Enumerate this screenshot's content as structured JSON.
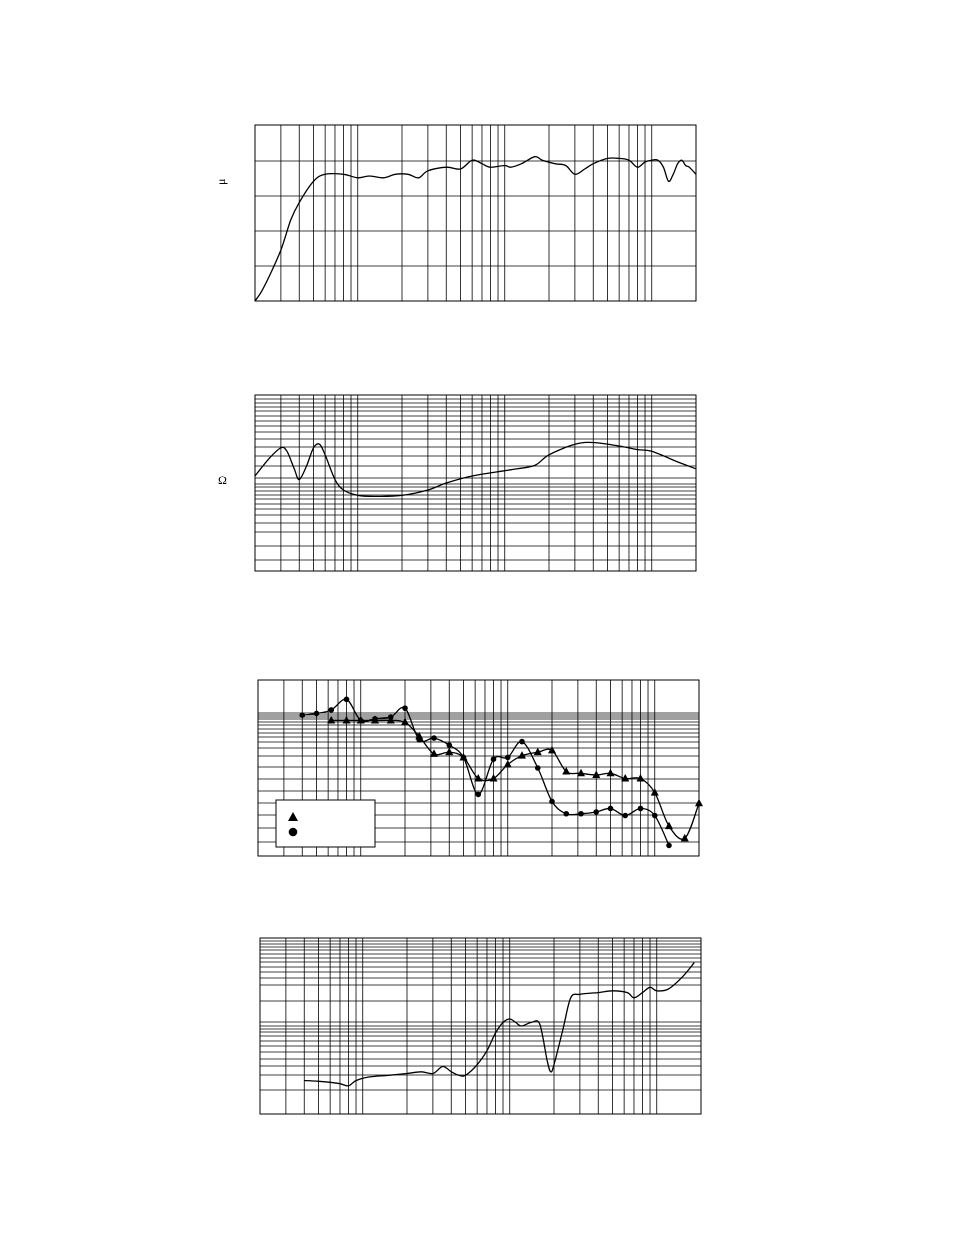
{
  "page": {
    "unit_mu": "μ",
    "unit_ohm": "Ω"
  },
  "chart_data": [
    {
      "type": "line",
      "x_scale": "log",
      "xlim": [
        20,
        20000
      ],
      "x_decade_positions_label": "",
      "ylim": [
        0,
        5
      ],
      "grid": true,
      "legend": "none",
      "series": [
        {
          "points": [
            [
              20,
              0
            ],
            [
              22,
              0.25
            ],
            [
              25,
              0.7
            ],
            [
              30,
              1.45
            ],
            [
              35,
              2.3
            ],
            [
              40,
              2.8
            ],
            [
              50,
              3.4
            ],
            [
              60,
              3.6
            ],
            [
              80,
              3.6
            ],
            [
              100,
              3.5
            ],
            [
              120,
              3.55
            ],
            [
              150,
              3.5
            ],
            [
              180,
              3.6
            ],
            [
              220,
              3.6
            ],
            [
              260,
              3.5
            ],
            [
              300,
              3.7
            ],
            [
              400,
              3.8
            ],
            [
              500,
              3.75
            ],
            [
              600,
              4.0
            ],
            [
              700,
              3.9
            ],
            [
              800,
              3.8
            ],
            [
              1000,
              3.85
            ],
            [
              1100,
              3.8
            ],
            [
              1300,
              3.9
            ],
            [
              1600,
              4.1
            ],
            [
              1800,
              4.0
            ],
            [
              2200,
              3.9
            ],
            [
              2600,
              3.85
            ],
            [
              3000,
              3.6
            ],
            [
              3500,
              3.75
            ],
            [
              4000,
              3.9
            ],
            [
              5000,
              4.05
            ],
            [
              6000,
              4.05
            ],
            [
              7000,
              4.0
            ],
            [
              8000,
              3.8
            ],
            [
              9000,
              3.95
            ],
            [
              10000,
              4.0
            ],
            [
              11000,
              4.0
            ],
            [
              12000,
              3.8
            ],
            [
              13000,
              3.4
            ],
            [
              14000,
              3.6
            ],
            [
              15000,
              3.9
            ],
            [
              16000,
              4.0
            ],
            [
              17000,
              3.85
            ],
            [
              18000,
              3.8
            ],
            [
              20000,
              3.6
            ]
          ]
        }
      ]
    },
    {
      "type": "line",
      "x_scale": "log",
      "xlim": [
        20,
        20000
      ],
      "ylim": [
        0,
        5
      ],
      "grid": true,
      "legend": "none",
      "series": [
        {
          "points": [
            [
              20,
              2.7
            ],
            [
              25,
              3.2
            ],
            [
              30,
              3.5
            ],
            [
              33,
              3.4
            ],
            [
              37,
              2.9
            ],
            [
              40,
              2.6
            ],
            [
              45,
              3.0
            ],
            [
              50,
              3.5
            ],
            [
              55,
              3.6
            ],
            [
              60,
              3.3
            ],
            [
              70,
              2.6
            ],
            [
              80,
              2.3
            ],
            [
              100,
              2.15
            ],
            [
              130,
              2.12
            ],
            [
              200,
              2.15
            ],
            [
              300,
              2.3
            ],
            [
              400,
              2.5
            ],
            [
              600,
              2.7
            ],
            [
              1000,
              2.85
            ],
            [
              1200,
              2.9
            ],
            [
              1600,
              3.0
            ],
            [
              2000,
              3.3
            ],
            [
              3000,
              3.6
            ],
            [
              4000,
              3.65
            ],
            [
              6000,
              3.55
            ],
            [
              8000,
              3.45
            ],
            [
              10000,
              3.4
            ],
            [
              15000,
              3.1
            ],
            [
              20000,
              2.9
            ]
          ]
        }
      ]
    },
    {
      "type": "line",
      "x_scale": "log",
      "xlim": [
        20,
        20000
      ],
      "ylim": [
        0,
        5
      ],
      "grid": true,
      "legend": "bottom-left",
      "series": [
        {
          "marker": "triangle",
          "points": [
            [
              63,
              3.85
            ],
            [
              80,
              3.85
            ],
            [
              100,
              3.85
            ],
            [
              125,
              3.85
            ],
            [
              160,
              3.85
            ],
            [
              200,
              3.8
            ],
            [
              250,
              3.4
            ],
            [
              315,
              2.9
            ],
            [
              400,
              2.95
            ],
            [
              500,
              2.8
            ],
            [
              630,
              2.2
            ],
            [
              800,
              2.2
            ],
            [
              1000,
              2.6
            ],
            [
              1250,
              2.85
            ],
            [
              1600,
              2.95
            ],
            [
              2000,
              3.0
            ],
            [
              2500,
              2.4
            ],
            [
              3150,
              2.35
            ],
            [
              4000,
              2.3
            ],
            [
              5000,
              2.35
            ],
            [
              6300,
              2.2
            ],
            [
              8000,
              2.2
            ],
            [
              10000,
              1.8
            ],
            [
              12500,
              0.85
            ],
            [
              16000,
              0.5
            ],
            [
              20000,
              1.5
            ]
          ]
        },
        {
          "marker": "circle",
          "points": [
            [
              40,
              4.0
            ],
            [
              50,
              4.05
            ],
            [
              63,
              4.15
            ],
            [
              80,
              4.45
            ],
            [
              100,
              3.85
            ],
            [
              125,
              3.9
            ],
            [
              160,
              3.95
            ],
            [
              200,
              4.2
            ],
            [
              250,
              3.3
            ],
            [
              315,
              3.35
            ],
            [
              400,
              3.15
            ],
            [
              500,
              2.8
            ],
            [
              630,
              1.75
            ],
            [
              800,
              2.75
            ],
            [
              1000,
              2.8
            ],
            [
              1250,
              3.25
            ],
            [
              1600,
              2.5
            ],
            [
              2000,
              1.55
            ],
            [
              2500,
              1.2
            ],
            [
              3150,
              1.2
            ],
            [
              4000,
              1.25
            ],
            [
              5000,
              1.35
            ],
            [
              6300,
              1.15
            ],
            [
              8000,
              1.35
            ],
            [
              10000,
              1.15
            ],
            [
              12500,
              0.3
            ]
          ]
        }
      ]
    },
    {
      "type": "line",
      "x_scale": "log",
      "xlim": [
        20,
        20000
      ],
      "ylim": [
        0,
        5
      ],
      "grid": true,
      "legend": "none",
      "series": [
        {
          "points": [
            [
              40,
              0.95
            ],
            [
              50,
              0.93
            ],
            [
              60,
              0.9
            ],
            [
              70,
              0.86
            ],
            [
              80,
              0.8
            ],
            [
              90,
              0.95
            ],
            [
              110,
              1.05
            ],
            [
              150,
              1.1
            ],
            [
              200,
              1.15
            ],
            [
              250,
              1.2
            ],
            [
              300,
              1.15
            ],
            [
              350,
              1.35
            ],
            [
              400,
              1.2
            ],
            [
              450,
              1.1
            ],
            [
              500,
              1.1
            ],
            [
              600,
              1.4
            ],
            [
              700,
              1.8
            ],
            [
              800,
              2.3
            ],
            [
              900,
              2.6
            ],
            [
              1000,
              2.7
            ],
            [
              1100,
              2.6
            ],
            [
              1200,
              2.5
            ],
            [
              1400,
              2.6
            ],
            [
              1600,
              2.55
            ],
            [
              1800,
              1.5
            ],
            [
              1900,
              1.2
            ],
            [
              2000,
              1.4
            ],
            [
              2300,
              2.4
            ],
            [
              2600,
              3.3
            ],
            [
              3000,
              3.4
            ],
            [
              4000,
              3.45
            ],
            [
              5000,
              3.5
            ],
            [
              6300,
              3.45
            ],
            [
              7000,
              3.3
            ],
            [
              8000,
              3.45
            ],
            [
              9000,
              3.6
            ],
            [
              10000,
              3.5
            ],
            [
              12000,
              3.55
            ],
            [
              15000,
              3.9
            ],
            [
              18000,
              4.3
            ]
          ]
        }
      ]
    }
  ]
}
